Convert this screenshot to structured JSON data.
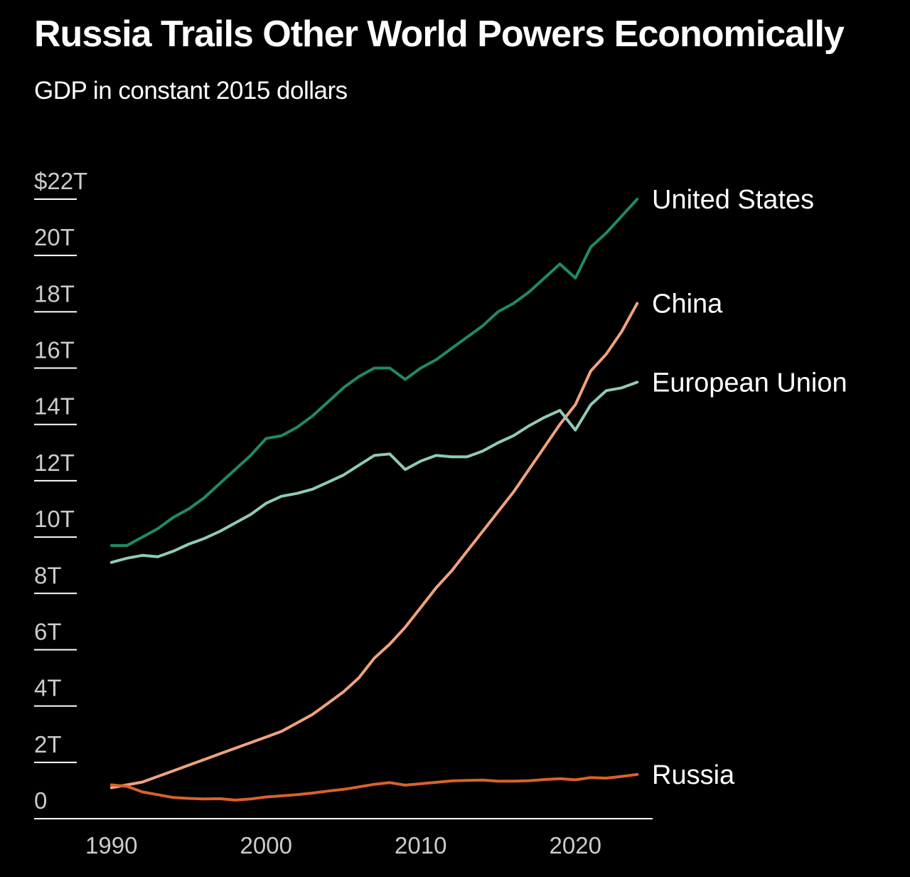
{
  "chart_data": {
    "type": "line",
    "title": "Russia Trails Other World Powers Economically",
    "subtitle": "GDP in constant 2015 dollars",
    "xlabel": "",
    "ylabel": "",
    "x": [
      1990,
      1991,
      1992,
      1993,
      1994,
      1995,
      1996,
      1997,
      1998,
      1999,
      2000,
      2001,
      2002,
      2003,
      2004,
      2005,
      2006,
      2007,
      2008,
      2009,
      2010,
      2011,
      2012,
      2013,
      2014,
      2015,
      2016,
      2017,
      2018,
      2019,
      2020,
      2021,
      2022,
      2023,
      2024
    ],
    "xlim": [
      1985,
      2025
    ],
    "ylim": [
      0,
      22
    ],
    "y_ticks": [
      {
        "value": 0,
        "label": "0"
      },
      {
        "value": 2,
        "label": "2T"
      },
      {
        "value": 4,
        "label": "4T"
      },
      {
        "value": 6,
        "label": "6T"
      },
      {
        "value": 8,
        "label": "8T"
      },
      {
        "value": 10,
        "label": "10T"
      },
      {
        "value": 12,
        "label": "12T"
      },
      {
        "value": 14,
        "label": "14T"
      },
      {
        "value": 16,
        "label": "16T"
      },
      {
        "value": 18,
        "label": "18T"
      },
      {
        "value": 20,
        "label": "20T"
      },
      {
        "value": 22,
        "label": "$22T"
      }
    ],
    "x_ticks": [
      {
        "value": 1990,
        "label": "1990"
      },
      {
        "value": 2000,
        "label": "2000"
      },
      {
        "value": 2010,
        "label": "2010"
      },
      {
        "value": 2020,
        "label": "2020"
      }
    ],
    "grid": false,
    "legend": "direct labels at line ends",
    "series": [
      {
        "name": "United States",
        "color": "#1f8a63",
        "values": [
          9.7,
          9.7,
          10.0,
          10.3,
          10.7,
          11.0,
          11.4,
          11.9,
          12.4,
          12.9,
          13.5,
          13.6,
          13.9,
          14.3,
          14.8,
          15.3,
          15.7,
          16.0,
          16.0,
          15.6,
          16.0,
          16.3,
          16.7,
          17.1,
          17.5,
          18.0,
          18.3,
          18.7,
          19.2,
          19.7,
          19.2,
          20.3,
          20.8,
          21.4,
          22.0
        ]
      },
      {
        "name": "China",
        "color": "#f0a27e",
        "values": [
          1.1,
          1.2,
          1.3,
          1.5,
          1.7,
          1.9,
          2.1,
          2.3,
          2.5,
          2.7,
          2.9,
          3.1,
          3.4,
          3.7,
          4.1,
          4.5,
          5.0,
          5.7,
          6.2,
          6.8,
          7.5,
          8.2,
          8.8,
          9.5,
          10.2,
          10.9,
          11.6,
          12.4,
          13.2,
          14.0,
          14.7,
          15.9,
          16.5,
          17.3,
          18.3
        ]
      },
      {
        "name": "European Union",
        "color": "#8fcbb8",
        "values": [
          9.1,
          9.25,
          9.35,
          9.3,
          9.5,
          9.75,
          9.95,
          10.2,
          10.5,
          10.8,
          11.2,
          11.45,
          11.55,
          11.7,
          11.95,
          12.2,
          12.55,
          12.9,
          12.95,
          12.4,
          12.7,
          12.9,
          12.85,
          12.85,
          13.05,
          13.35,
          13.6,
          13.95,
          14.25,
          14.5,
          13.8,
          14.7,
          15.2,
          15.3,
          15.5
        ]
      },
      {
        "name": "Russia",
        "color": "#d9622a",
        "values": [
          1.2,
          1.15,
          0.95,
          0.85,
          0.75,
          0.72,
          0.7,
          0.71,
          0.66,
          0.7,
          0.77,
          0.81,
          0.85,
          0.91,
          0.98,
          1.04,
          1.13,
          1.22,
          1.28,
          1.19,
          1.24,
          1.29,
          1.34,
          1.36,
          1.37,
          1.33,
          1.33,
          1.35,
          1.39,
          1.42,
          1.38,
          1.46,
          1.44,
          1.5,
          1.57
        ]
      }
    ]
  }
}
